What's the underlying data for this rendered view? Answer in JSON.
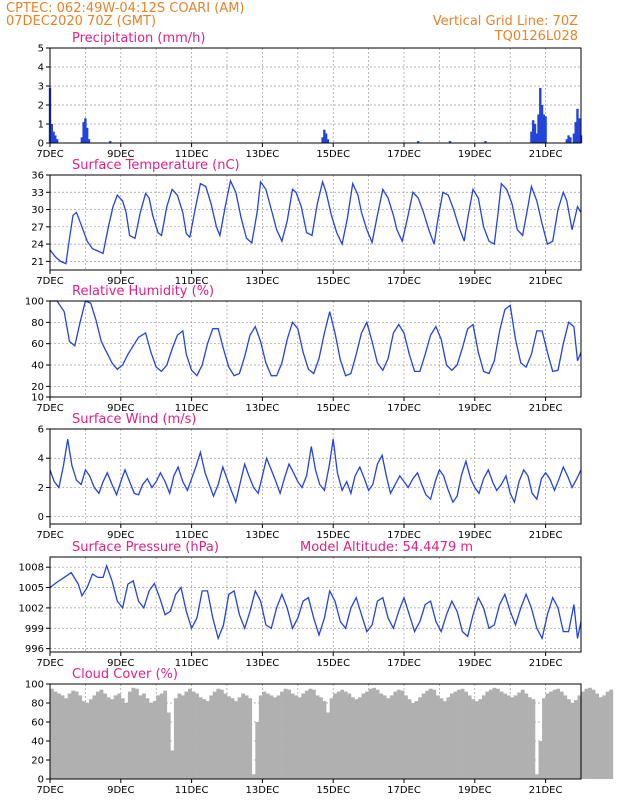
{
  "header": {
    "line1": "CPTEC:   062:49W-04:12S   COARI (AM)",
    "line2": "07DEC2020 70Z (GMT)",
    "right1": "Vertical Grid Line: 70Z",
    "right2": "TQ0126L028"
  },
  "colors": {
    "header": "#e8832a",
    "panel_title": "#e0208a",
    "series": "#2244dd",
    "cloud": "#b0b0b0",
    "grid": "#9a9a9a"
  },
  "x_axis": {
    "labels": [
      "7DEC",
      "9DEC",
      "11DEC",
      "13DEC",
      "15DEC",
      "17DEC",
      "19DEC",
      "21DEC"
    ],
    "start_day": 7,
    "end_day": 22,
    "grid_days": [
      8,
      9,
      10,
      11,
      12,
      13,
      14,
      15,
      16,
      17,
      18,
      19,
      20,
      21
    ]
  },
  "chart_data": [
    {
      "type": "bar",
      "title": "Precipitation (mm/h)",
      "ylim": [
        0,
        5
      ],
      "yticks": [
        0,
        1,
        2,
        3,
        4,
        5
      ],
      "x": [
        7.0,
        7.05,
        7.1,
        7.15,
        7.2,
        7.9,
        7.95,
        8.0,
        8.05,
        8.1,
        8.7,
        14.7,
        14.75,
        14.8,
        14.85,
        17.4,
        18.3,
        19.3,
        20.6,
        20.65,
        20.7,
        20.75,
        20.8,
        20.85,
        20.9,
        20.95,
        21.0,
        21.6,
        21.65,
        21.7,
        21.8,
        21.85,
        21.9,
        21.95,
        22.0
      ],
      "values": [
        2.9,
        1.0,
        0.6,
        0.4,
        0.2,
        0.3,
        1.1,
        1.3,
        0.8,
        0.2,
        0.1,
        0.3,
        0.7,
        0.5,
        0.2,
        0.1,
        0.1,
        0.1,
        0.6,
        1.2,
        1.0,
        0.5,
        1.5,
        2.9,
        2.0,
        1.5,
        1.4,
        0.2,
        0.4,
        0.3,
        0.5,
        1.1,
        1.8,
        1.3,
        0.4
      ]
    },
    {
      "type": "line",
      "title": "Surface Temperature (nC)",
      "ylim": [
        19.5,
        36
      ],
      "yticks": [
        21,
        24,
        27,
        30,
        33,
        36
      ],
      "x": [
        7.0,
        7.15,
        7.3,
        7.45,
        7.55,
        7.65,
        7.75,
        7.9,
        8.05,
        8.2,
        8.35,
        8.5,
        8.65,
        8.78,
        8.9,
        9.05,
        9.15,
        9.25,
        9.4,
        9.55,
        9.7,
        9.8,
        9.9,
        10.05,
        10.15,
        10.3,
        10.45,
        10.6,
        10.75,
        10.85,
        10.95,
        11.1,
        11.25,
        11.4,
        11.55,
        11.7,
        11.8,
        11.95,
        12.1,
        12.25,
        12.4,
        12.55,
        12.7,
        12.85,
        12.95,
        13.1,
        13.25,
        13.4,
        13.55,
        13.7,
        13.85,
        13.95,
        14.1,
        14.25,
        14.4,
        14.55,
        14.7,
        14.8,
        14.95,
        15.1,
        15.25,
        15.4,
        15.55,
        15.7,
        15.8,
        15.95,
        16.1,
        16.25,
        16.4,
        16.55,
        16.7,
        16.8,
        16.95,
        17.1,
        17.25,
        17.4,
        17.55,
        17.7,
        17.85,
        17.95,
        18.1,
        18.25,
        18.4,
        18.55,
        18.7,
        18.8,
        18.95,
        19.1,
        19.25,
        19.4,
        19.55,
        19.65,
        19.75,
        19.9,
        20.05,
        20.2,
        20.35,
        20.5,
        20.6,
        20.75,
        20.9,
        21.05,
        21.2,
        21.35,
        21.5,
        21.6,
        21.75,
        21.9,
        22.0
      ],
      "values": [
        23.0,
        21.8,
        21.0,
        20.6,
        25.0,
        29.0,
        29.5,
        27.0,
        24.5,
        23.2,
        22.8,
        22.4,
        27.0,
        30.5,
        32.5,
        31.5,
        29.5,
        25.5,
        25.0,
        29.5,
        32.8,
        32.0,
        29.0,
        26.0,
        25.5,
        30.5,
        33.5,
        32.5,
        29.5,
        25.8,
        25.2,
        30.0,
        34.5,
        34.0,
        31.0,
        27.0,
        25.5,
        30.5,
        35.0,
        33.0,
        28.5,
        25.0,
        24.2,
        29.5,
        34.8,
        33.5,
        30.0,
        26.5,
        24.5,
        28.0,
        33.5,
        33.0,
        30.5,
        26.0,
        25.5,
        31.0,
        34.8,
        33.0,
        29.0,
        26.0,
        24.0,
        28.5,
        34.5,
        32.5,
        29.5,
        26.5,
        24.3,
        29.0,
        33.5,
        32.0,
        29.0,
        26.5,
        24.5,
        28.5,
        33.0,
        32.0,
        29.5,
        26.5,
        24.0,
        28.0,
        33.0,
        32.5,
        30.0,
        27.0,
        24.5,
        28.5,
        33.5,
        32.0,
        27.0,
        24.5,
        24.0,
        29.0,
        34.5,
        33.5,
        31.0,
        26.5,
        25.5,
        30.5,
        34.0,
        31.5,
        27.5,
        24.0,
        24.5,
        30.0,
        33.0,
        31.5,
        26.5,
        30.5,
        29.5
      ]
    },
    {
      "type": "line",
      "title": "Relative Humidity (%)",
      "ylim": [
        10,
        100
      ],
      "yticks": [
        10,
        20,
        40,
        60,
        80,
        100
      ],
      "x": [
        7.0,
        7.2,
        7.4,
        7.55,
        7.7,
        7.85,
        8.0,
        8.15,
        8.3,
        8.45,
        8.6,
        8.75,
        8.9,
        9.05,
        9.2,
        9.35,
        9.5,
        9.7,
        9.85,
        10.0,
        10.15,
        10.3,
        10.45,
        10.6,
        10.75,
        10.85,
        11.0,
        11.15,
        11.3,
        11.45,
        11.6,
        11.75,
        11.9,
        12.05,
        12.2,
        12.35,
        12.5,
        12.65,
        12.8,
        12.95,
        13.1,
        13.25,
        13.4,
        13.55,
        13.7,
        13.85,
        14.0,
        14.15,
        14.3,
        14.45,
        14.6,
        14.75,
        14.9,
        15.05,
        15.2,
        15.35,
        15.5,
        15.65,
        15.8,
        15.95,
        16.1,
        16.25,
        16.4,
        16.55,
        16.7,
        16.85,
        17.0,
        17.15,
        17.3,
        17.45,
        17.6,
        17.75,
        17.9,
        18.05,
        18.2,
        18.35,
        18.5,
        18.65,
        18.8,
        18.95,
        19.1,
        19.25,
        19.4,
        19.55,
        19.7,
        19.85,
        20.0,
        20.15,
        20.3,
        20.45,
        20.6,
        20.75,
        20.9,
        21.05,
        21.2,
        21.35,
        21.5,
        21.65,
        21.8,
        21.9,
        22.0
      ],
      "values": [
        100,
        100,
        90,
        62,
        58,
        80,
        100,
        98,
        82,
        62,
        52,
        42,
        36,
        40,
        50,
        58,
        66,
        70,
        52,
        38,
        34,
        40,
        55,
        68,
        72,
        50,
        35,
        30,
        40,
        60,
        74,
        74,
        55,
        38,
        30,
        32,
        48,
        68,
        76,
        62,
        42,
        30,
        30,
        42,
        64,
        80,
        74,
        52,
        36,
        32,
        46,
        70,
        90,
        70,
        45,
        30,
        32,
        50,
        70,
        80,
        62,
        42,
        35,
        46,
        70,
        78,
        70,
        50,
        34,
        34,
        50,
        68,
        76,
        64,
        40,
        35,
        40,
        56,
        74,
        78,
        52,
        34,
        32,
        44,
        72,
        92,
        96,
        64,
        42,
        38,
        50,
        72,
        72,
        52,
        34,
        35,
        60,
        80,
        76,
        44,
        52
      ]
    },
    {
      "type": "line",
      "title": "Surface Wind (m/s)",
      "ylim": [
        -0.5,
        6
      ],
      "yticks": [
        0,
        2,
        4,
        6
      ],
      "x": [
        7.0,
        7.12,
        7.25,
        7.38,
        7.5,
        7.62,
        7.75,
        7.88,
        8.0,
        8.12,
        8.25,
        8.38,
        8.5,
        8.62,
        8.75,
        8.88,
        9.0,
        9.12,
        9.25,
        9.38,
        9.5,
        9.62,
        9.75,
        9.88,
        10.0,
        10.12,
        10.25,
        10.38,
        10.5,
        10.62,
        10.75,
        10.88,
        11.0,
        11.12,
        11.25,
        11.38,
        11.5,
        11.62,
        11.75,
        11.88,
        12.0,
        12.12,
        12.25,
        12.38,
        12.5,
        12.62,
        12.75,
        12.88,
        13.0,
        13.12,
        13.25,
        13.38,
        13.5,
        13.62,
        13.75,
        13.88,
        14.0,
        14.12,
        14.25,
        14.38,
        14.5,
        14.62,
        14.75,
        14.88,
        15.0,
        15.12,
        15.25,
        15.38,
        15.5,
        15.62,
        15.75,
        15.88,
        16.0,
        16.12,
        16.25,
        16.38,
        16.5,
        16.62,
        16.75,
        16.88,
        17.0,
        17.12,
        17.25,
        17.38,
        17.5,
        17.62,
        17.75,
        17.88,
        18.0,
        18.12,
        18.25,
        18.38,
        18.5,
        18.62,
        18.75,
        18.88,
        19.0,
        19.12,
        19.25,
        19.38,
        19.5,
        19.62,
        19.75,
        19.88,
        20.0,
        20.12,
        20.25,
        20.38,
        20.5,
        20.62,
        20.75,
        20.88,
        21.0,
        21.12,
        21.25,
        21.38,
        21.5,
        21.62,
        21.75,
        21.88,
        22.0
      ],
      "values": [
        3.2,
        2.4,
        2.0,
        3.5,
        5.3,
        3.5,
        2.5,
        2.2,
        3.2,
        2.8,
        2.0,
        1.6,
        2.4,
        3.0,
        2.2,
        1.5,
        2.4,
        3.2,
        2.4,
        1.6,
        1.5,
        2.2,
        2.6,
        2.0,
        2.4,
        3.0,
        2.4,
        1.6,
        2.8,
        3.4,
        2.4,
        1.8,
        2.6,
        3.4,
        4.4,
        3.0,
        2.2,
        1.4,
        2.2,
        3.4,
        2.6,
        1.8,
        1.0,
        2.4,
        3.6,
        2.8,
        2.0,
        1.6,
        2.8,
        4.0,
        3.2,
        2.4,
        1.6,
        2.6,
        3.6,
        3.0,
        2.4,
        2.0,
        2.8,
        4.8,
        3.2,
        2.2,
        1.8,
        3.4,
        5.3,
        3.0,
        1.8,
        2.4,
        1.6,
        2.8,
        3.4,
        2.6,
        1.8,
        2.2,
        3.6,
        4.2,
        2.8,
        1.6,
        2.2,
        2.8,
        2.4,
        2.0,
        2.6,
        3.0,
        2.2,
        1.5,
        1.2,
        2.4,
        3.2,
        2.8,
        1.8,
        1.0,
        1.4,
        2.8,
        3.8,
        2.6,
        2.0,
        1.6,
        2.6,
        3.2,
        2.4,
        1.8,
        2.2,
        2.8,
        1.6,
        1.0,
        2.4,
        3.2,
        2.8,
        1.6,
        1.2,
        2.6,
        3.0,
        2.6,
        1.8,
        2.6,
        3.4,
        2.8,
        2.0,
        2.6,
        3.2
      ]
    },
    {
      "type": "line",
      "title": "Surface Pressure (hPa)",
      "ylim": [
        995.5,
        1009.5
      ],
      "yticks": [
        996,
        999,
        1002,
        1005,
        1008
      ],
      "x": [
        7.0,
        7.2,
        7.4,
        7.6,
        7.8,
        7.9,
        8.05,
        8.2,
        8.35,
        8.5,
        8.6,
        8.75,
        8.9,
        9.05,
        9.2,
        9.35,
        9.5,
        9.65,
        9.8,
        9.95,
        10.1,
        10.25,
        10.4,
        10.55,
        10.7,
        10.85,
        11.0,
        11.15,
        11.3,
        11.45,
        11.6,
        11.75,
        11.9,
        12.05,
        12.2,
        12.35,
        12.5,
        12.65,
        12.8,
        12.95,
        13.1,
        13.25,
        13.4,
        13.55,
        13.7,
        13.85,
        14.0,
        14.15,
        14.3,
        14.45,
        14.6,
        14.75,
        14.9,
        15.05,
        15.2,
        15.35,
        15.5,
        15.65,
        15.8,
        15.95,
        16.1,
        16.25,
        16.4,
        16.55,
        16.7,
        16.85,
        17.0,
        17.15,
        17.3,
        17.45,
        17.6,
        17.75,
        17.9,
        18.05,
        18.2,
        18.35,
        18.5,
        18.65,
        18.8,
        18.95,
        19.1,
        19.25,
        19.4,
        19.55,
        19.7,
        19.85,
        20.0,
        20.15,
        20.3,
        20.45,
        20.6,
        20.75,
        20.9,
        21.05,
        21.2,
        21.35,
        21.5,
        21.65,
        21.8,
        21.9,
        22.0
      ],
      "values": [
        1005.0,
        1005.8,
        1006.5,
        1007.2,
        1005.5,
        1003.8,
        1005.0,
        1007.0,
        1006.5,
        1006.5,
        1008.2,
        1006.0,
        1003.0,
        1002.0,
        1005.5,
        1006.0,
        1003.0,
        1002.0,
        1004.5,
        1005.6,
        1003.5,
        1001.0,
        1001.5,
        1004.0,
        1005.0,
        1001.5,
        999.0,
        1000.5,
        1004.5,
        1004.5,
        1000.5,
        997.5,
        999.5,
        1004.0,
        1004.5,
        1001.0,
        999.0,
        1001.5,
        1004.5,
        1003.0,
        999.5,
        999.0,
        1002.0,
        1004.0,
        1002.0,
        999.0,
        1000.5,
        1003.0,
        1003.5,
        1000.5,
        998.0,
        1000.5,
        1004.5,
        1003.0,
        1000.0,
        999.0,
        1002.0,
        1003.5,
        1001.0,
        998.5,
        999.5,
        1003.0,
        1003.5,
        1000.5,
        999.0,
        1001.5,
        1003.5,
        1001.0,
        998.5,
        1000.0,
        1002.5,
        1003.0,
        1000.0,
        998.5,
        1001.0,
        1003.0,
        1001.5,
        998.5,
        997.8,
        1001.0,
        1003.5,
        1002.0,
        999.0,
        999.5,
        1002.5,
        1004.0,
        1001.5,
        999.5,
        1002.0,
        1004.0,
        1002.0,
        999.0,
        997.5,
        1001.0,
        1003.5,
        1002.0,
        998.5,
        998.5,
        1002.5,
        997.5,
        1000.0
      ]
    },
    {
      "type": "bar",
      "title": "Cloud Cover (%)",
      "ylim": [
        0,
        100
      ],
      "yticks": [
        0,
        20,
        40,
        60,
        80,
        100
      ],
      "x_start": 7.0,
      "x_step": 0.1,
      "values": [
        95,
        92,
        90,
        88,
        85,
        90,
        93,
        92,
        88,
        82,
        80,
        84,
        88,
        92,
        94,
        90,
        86,
        84,
        88,
        90,
        85,
        80,
        92,
        96,
        95,
        88,
        90,
        85,
        80,
        82,
        88,
        90,
        93,
        70,
        30,
        85,
        90,
        88,
        92,
        95,
        92,
        90,
        86,
        84,
        82,
        88,
        92,
        95,
        94,
        90,
        87,
        85,
        82,
        86,
        90,
        88,
        85,
        5,
        60,
        88,
        92,
        90,
        88,
        86,
        88,
        92,
        95,
        94,
        90,
        88,
        86,
        90,
        93,
        95,
        94,
        88,
        86,
        82,
        70,
        85,
        90,
        92,
        94,
        92,
        90,
        86,
        84,
        86,
        90,
        92,
        95,
        96,
        94,
        90,
        88,
        85,
        88,
        92,
        94,
        93,
        88,
        84,
        80,
        82,
        86,
        90,
        93,
        95,
        94,
        88,
        85,
        82,
        86,
        90,
        92,
        94,
        95,
        92,
        88,
        84,
        82,
        84,
        88,
        92,
        94,
        96,
        95,
        92,
        90,
        88,
        86,
        88,
        91,
        94,
        90,
        86,
        84,
        5,
        40,
        85,
        90,
        92,
        94,
        95,
        92,
        88,
        84,
        80,
        83,
        88,
        92,
        95,
        96,
        94,
        90,
        86,
        88,
        92,
        94
      ]
    }
  ],
  "panels": {
    "altitude_label": "Model Altitude: 54.4479 m"
  }
}
